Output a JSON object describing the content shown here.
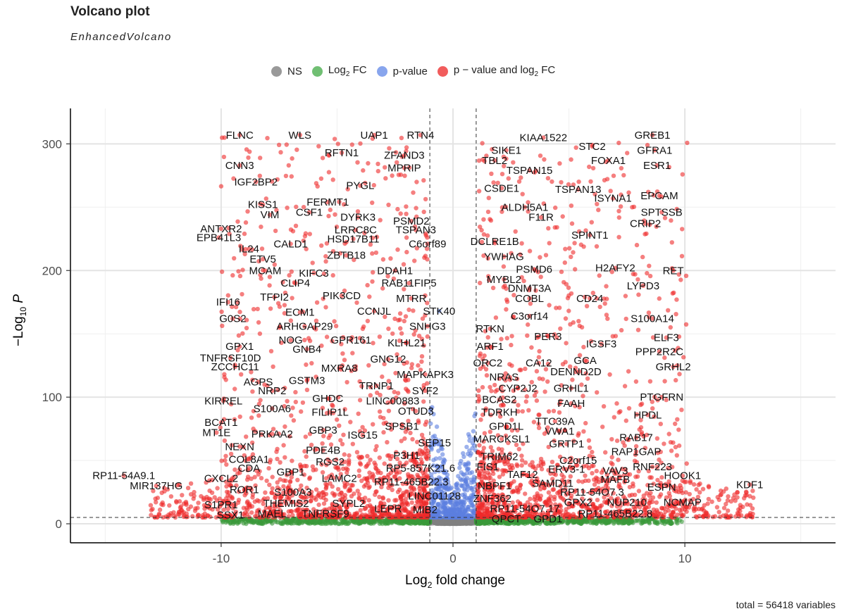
{
  "chart_data": {
    "type": "scatter",
    "title": "Volcano plot",
    "subtitle": "EnhancedVolcano",
    "xlabel_parts": [
      "Log",
      "2",
      " fold change"
    ],
    "ylabel_parts": [
      "−Log",
      "10",
      " P"
    ],
    "xlim": [
      -16.5,
      16.5
    ],
    "ylim": [
      -15,
      328
    ],
    "x_ticks": [
      -10,
      0,
      10
    ],
    "y_ticks": [
      0,
      100,
      200,
      300
    ],
    "grid": true,
    "legend_position": "top",
    "fc_cutoff": 1,
    "p_cutoff_y": 5,
    "caption": "total = 56418 variables",
    "legend": [
      {
        "label": "NS",
        "sub": "",
        "after": "",
        "color": "#808080"
      },
      {
        "label": "Log",
        "sub": "2",
        "after": " FC",
        "color": "#4caf50"
      },
      {
        "label": "p-value",
        "sub": "",
        "after": "",
        "color": "#6a8ee8"
      },
      {
        "label": "p − value and log",
        "sub": "2",
        "after": " FC",
        "color": "#ee3333"
      }
    ],
    "colors": {
      "ns": "#808080",
      "fc": "#3a9a3a",
      "p": "#5b7fe0",
      "both": "#ee2a2a"
    },
    "labels": [
      {
        "text": "FLNC",
        "x": -9.2,
        "y": 307
      },
      {
        "text": "WLS",
        "x": -6.6,
        "y": 307
      },
      {
        "text": "UAP1",
        "x": -3.4,
        "y": 307
      },
      {
        "text": "RTN4",
        "x": -1.4,
        "y": 307
      },
      {
        "text": "KIAA1522",
        "x": 3.9,
        "y": 305
      },
      {
        "text": "GREB1",
        "x": 8.6,
        "y": 307
      },
      {
        "text": "RFTN1",
        "x": -4.8,
        "y": 293
      },
      {
        "text": "ZFAND3",
        "x": -2.1,
        "y": 291
      },
      {
        "text": "SIKE1",
        "x": 2.3,
        "y": 295
      },
      {
        "text": "STC2",
        "x": 6.0,
        "y": 298
      },
      {
        "text": "GFRA1",
        "x": 8.7,
        "y": 295
      },
      {
        "text": "TBL2",
        "x": 1.8,
        "y": 287
      },
      {
        "text": "FOXA1",
        "x": 6.7,
        "y": 287
      },
      {
        "text": "CNN3",
        "x": -9.2,
        "y": 283
      },
      {
        "text": "MPRIP",
        "x": -2.1,
        "y": 281
      },
      {
        "text": "ESR1",
        "x": 8.8,
        "y": 283
      },
      {
        "text": "TSPAN15",
        "x": 3.3,
        "y": 279
      },
      {
        "text": "IGF2BP2",
        "x": -8.5,
        "y": 270
      },
      {
        "text": "PYGL",
        "x": -4.0,
        "y": 267
      },
      {
        "text": "CSDE1",
        "x": 2.1,
        "y": 265
      },
      {
        "text": "TSPAN13",
        "x": 5.4,
        "y": 264
      },
      {
        "text": "EPCAM",
        "x": 8.9,
        "y": 259
      },
      {
        "text": "ISYNA1",
        "x": 6.9,
        "y": 257
      },
      {
        "text": "FERMT1",
        "x": -5.4,
        "y": 254
      },
      {
        "text": "KISS1",
        "x": -8.2,
        "y": 252
      },
      {
        "text": "ALDH5A1",
        "x": 3.1,
        "y": 250
      },
      {
        "text": "CSF1",
        "x": -6.2,
        "y": 246
      },
      {
        "text": "VIM",
        "x": -7.9,
        "y": 244
      },
      {
        "text": "SPTSSB",
        "x": 9.0,
        "y": 246
      },
      {
        "text": "DYRK3",
        "x": -4.1,
        "y": 242
      },
      {
        "text": "F11R",
        "x": 3.8,
        "y": 242
      },
      {
        "text": "PSMD2",
        "x": -1.8,
        "y": 239
      },
      {
        "text": "CRIP2",
        "x": 8.3,
        "y": 237
      },
      {
        "text": "ANTXR2",
        "x": -10.0,
        "y": 233
      },
      {
        "text": "LRRC8C",
        "x": -4.2,
        "y": 232
      },
      {
        "text": "TSPAN3",
        "x": -1.6,
        "y": 232
      },
      {
        "text": "EPB41L3",
        "x": -10.1,
        "y": 226
      },
      {
        "text": "SPINT1",
        "x": 5.9,
        "y": 228
      },
      {
        "text": "HSD17B11",
        "x": -4.3,
        "y": 225
      },
      {
        "text": "DCLRE1B",
        "x": 1.8,
        "y": 223
      },
      {
        "text": "CALD1",
        "x": -7.0,
        "y": 221
      },
      {
        "text": "C6orf89",
        "x": -1.1,
        "y": 221
      },
      {
        "text": "IL24",
        "x": -8.8,
        "y": 217
      },
      {
        "text": "ZBTB18",
        "x": -4.6,
        "y": 212
      },
      {
        "text": "YWHAG",
        "x": 2.2,
        "y": 211
      },
      {
        "text": "ETV5",
        "x": -8.2,
        "y": 209
      },
      {
        "text": "H2AFY2",
        "x": 7.0,
        "y": 202
      },
      {
        "text": "MCAM",
        "x": -8.1,
        "y": 200
      },
      {
        "text": "PSMD6",
        "x": 3.5,
        "y": 201
      },
      {
        "text": "KIFC3",
        "x": -6.0,
        "y": 198
      },
      {
        "text": "DDAH1",
        "x": -2.5,
        "y": 200
      },
      {
        "text": "RET",
        "x": 9.5,
        "y": 200
      },
      {
        "text": "MYBL2",
        "x": 2.2,
        "y": 193
      },
      {
        "text": "CLIP4",
        "x": -6.8,
        "y": 190
      },
      {
        "text": "RAB11FIP5",
        "x": -1.9,
        "y": 190
      },
      {
        "text": "LYPD3",
        "x": 8.2,
        "y": 188
      },
      {
        "text": "DNMT3A",
        "x": 3.3,
        "y": 186
      },
      {
        "text": "TFPI2",
        "x": -7.7,
        "y": 179
      },
      {
        "text": "PIK3CD",
        "x": -4.8,
        "y": 180
      },
      {
        "text": "MTRR",
        "x": -1.8,
        "y": 178
      },
      {
        "text": "COBL",
        "x": 3.3,
        "y": 178
      },
      {
        "text": "CD24",
        "x": 5.9,
        "y": 178
      },
      {
        "text": "IFI16",
        "x": -9.7,
        "y": 175
      },
      {
        "text": "CCNJL",
        "x": -3.4,
        "y": 168
      },
      {
        "text": "STK40",
        "x": -0.6,
        "y": 168
      },
      {
        "text": "ECM1",
        "x": -6.6,
        "y": 167
      },
      {
        "text": "C3orf14",
        "x": 3.3,
        "y": 164
      },
      {
        "text": "G0S2",
        "x": -9.5,
        "y": 162
      },
      {
        "text": "S100A14",
        "x": 8.6,
        "y": 162
      },
      {
        "text": "ARHGAP29",
        "x": -6.4,
        "y": 156
      },
      {
        "text": "SNHG3",
        "x": -1.1,
        "y": 156
      },
      {
        "text": "RTKN",
        "x": 1.6,
        "y": 154
      },
      {
        "text": "PER3",
        "x": 4.1,
        "y": 148
      },
      {
        "text": "ELF3",
        "x": 9.2,
        "y": 147
      },
      {
        "text": "NOG",
        "x": -7.0,
        "y": 145
      },
      {
        "text": "GPR161",
        "x": -4.4,
        "y": 145
      },
      {
        "text": "KLHL21",
        "x": -2.0,
        "y": 143
      },
      {
        "text": "IGSF3",
        "x": 6.4,
        "y": 142
      },
      {
        "text": "GPX1",
        "x": -9.2,
        "y": 140
      },
      {
        "text": "GNB4",
        "x": -6.3,
        "y": 138
      },
      {
        "text": "ARF1",
        "x": 1.6,
        "y": 140
      },
      {
        "text": "PPP2R2C",
        "x": 8.9,
        "y": 136
      },
      {
        "text": "TNFRSF10D",
        "x": -9.6,
        "y": 131
      },
      {
        "text": "GNG12",
        "x": -2.8,
        "y": 130
      },
      {
        "text": "GCA",
        "x": 5.7,
        "y": 129
      },
      {
        "text": "ZCCHC11",
        "x": -9.4,
        "y": 124
      },
      {
        "text": "ORC2",
        "x": 1.5,
        "y": 127
      },
      {
        "text": "CA12",
        "x": 3.7,
        "y": 127
      },
      {
        "text": "GRHL2",
        "x": 9.5,
        "y": 124
      },
      {
        "text": "MXRA8",
        "x": -4.9,
        "y": 123
      },
      {
        "text": "DENND2D",
        "x": 5.3,
        "y": 120
      },
      {
        "text": "MAPKAPK3",
        "x": -1.2,
        "y": 118
      },
      {
        "text": "NRAS",
        "x": 2.2,
        "y": 116
      },
      {
        "text": "AGPS",
        "x": -8.4,
        "y": 112
      },
      {
        "text": "GSTM3",
        "x": -6.3,
        "y": 113
      },
      {
        "text": "TRNP1",
        "x": -3.3,
        "y": 109
      },
      {
        "text": "GRHL1",
        "x": 5.1,
        "y": 107
      },
      {
        "text": "CYP2J2",
        "x": 2.8,
        "y": 107
      },
      {
        "text": "NRP2",
        "x": -7.8,
        "y": 105
      },
      {
        "text": "SYF2",
        "x": -1.2,
        "y": 105
      },
      {
        "text": "PTGFRN",
        "x": 9.0,
        "y": 100
      },
      {
        "text": "KIRREL",
        "x": -9.9,
        "y": 97
      },
      {
        "text": "GHDC",
        "x": -5.4,
        "y": 99
      },
      {
        "text": "LINC00883",
        "x": -2.6,
        "y": 97
      },
      {
        "text": "BCAS2",
        "x": 2.0,
        "y": 98
      },
      {
        "text": "FAAH",
        "x": 5.1,
        "y": 95
      },
      {
        "text": "S100A6",
        "x": -7.8,
        "y": 91
      },
      {
        "text": "FILIP1L",
        "x": -5.3,
        "y": 88
      },
      {
        "text": "OTUD3",
        "x": -1.6,
        "y": 89
      },
      {
        "text": "TDRKH",
        "x": 2.0,
        "y": 88
      },
      {
        "text": "HPDL",
        "x": 8.4,
        "y": 86
      },
      {
        "text": "BCAT1",
        "x": -10.0,
        "y": 80
      },
      {
        "text": "TTC39A",
        "x": 4.4,
        "y": 81
      },
      {
        "text": "SPSB1",
        "x": -2.2,
        "y": 77
      },
      {
        "text": "GPD1L",
        "x": 2.3,
        "y": 77
      },
      {
        "text": "MT1E",
        "x": -10.2,
        "y": 72
      },
      {
        "text": "PRKAA2",
        "x": -7.8,
        "y": 71
      },
      {
        "text": "GBP3",
        "x": -5.6,
        "y": 74
      },
      {
        "text": "VWA1",
        "x": 4.6,
        "y": 73
      },
      {
        "text": "ISG15",
        "x": -3.9,
        "y": 70
      },
      {
        "text": "RAB17",
        "x": 7.9,
        "y": 68
      },
      {
        "text": "MARCKSL1",
        "x": 2.1,
        "y": 67
      },
      {
        "text": "SEP15",
        "x": -0.8,
        "y": 64
      },
      {
        "text": "NEXN",
        "x": -9.2,
        "y": 61
      },
      {
        "text": "GRTP1",
        "x": 4.9,
        "y": 63
      },
      {
        "text": "PDE4B",
        "x": -5.6,
        "y": 58
      },
      {
        "text": "RAP1GAP",
        "x": 7.9,
        "y": 57
      },
      {
        "text": "P3H1",
        "x": -2.0,
        "y": 54
      },
      {
        "text": "TRIM62",
        "x": 2.0,
        "y": 53
      },
      {
        "text": "COL8A1",
        "x": -8.8,
        "y": 51
      },
      {
        "text": "RGS2",
        "x": -5.3,
        "y": 49
      },
      {
        "text": "C2orf15",
        "x": 5.4,
        "y": 50
      },
      {
        "text": "RNF223",
        "x": 8.6,
        "y": 45
      },
      {
        "text": "CDA",
        "x": -8.8,
        "y": 44
      },
      {
        "text": "GBP1",
        "x": -7.0,
        "y": 41
      },
      {
        "text": "RP5-857K21.6",
        "x": -1.4,
        "y": 44
      },
      {
        "text": "FIS1",
        "x": 1.5,
        "y": 45
      },
      {
        "text": "ERV3-1",
        "x": 4.9,
        "y": 43
      },
      {
        "text": "VAV3",
        "x": 7.0,
        "y": 42
      },
      {
        "text": "TAF12",
        "x": 3.0,
        "y": 39
      },
      {
        "text": "RP11-54A9.1",
        "x": -14.2,
        "y": 38
      },
      {
        "text": "HOOK1",
        "x": 9.9,
        "y": 38
      },
      {
        "text": "CXCL2",
        "x": -10.0,
        "y": 36
      },
      {
        "text": "LAMC2",
        "x": -4.9,
        "y": 36
      },
      {
        "text": "MAFB",
        "x": 7.0,
        "y": 35
      },
      {
        "text": "KDF1",
        "x": 12.8,
        "y": 31
      },
      {
        "text": "MIR137HG",
        "x": -12.8,
        "y": 30
      },
      {
        "text": "RP11-465B22.3",
        "x": -1.8,
        "y": 33
      },
      {
        "text": "NBPF1",
        "x": 1.8,
        "y": 30
      },
      {
        "text": "SAMD11",
        "x": 4.3,
        "y": 32
      },
      {
        "text": "ESPN",
        "x": 9.0,
        "y": 29
      },
      {
        "text": "ROR1",
        "x": -9.0,
        "y": 27
      },
      {
        "text": "S100A3",
        "x": -6.9,
        "y": 25
      },
      {
        "text": "RP11-54O7.3",
        "x": 6.0,
        "y": 25
      },
      {
        "text": "LINC01128",
        "x": -0.8,
        "y": 22
      },
      {
        "text": "ZNF362",
        "x": 1.7,
        "y": 20
      },
      {
        "text": "SYPL2",
        "x": -4.5,
        "y": 16
      },
      {
        "text": "NUP210",
        "x": 7.5,
        "y": 17
      },
      {
        "text": "NCMAP",
        "x": 9.9,
        "y": 17
      },
      {
        "text": "S1PR1",
        "x": -10.0,
        "y": 15
      },
      {
        "text": "THEMIS2",
        "x": -7.2,
        "y": 16
      },
      {
        "text": "GPX2",
        "x": 5.4,
        "y": 17
      },
      {
        "text": "RP11-54O7.17",
        "x": 3.1,
        "y": 12
      },
      {
        "text": "LEPR",
        "x": -2.8,
        "y": 12
      },
      {
        "text": "MIB2",
        "x": -1.2,
        "y": 11
      },
      {
        "text": "MAEL",
        "x": -7.8,
        "y": 8
      },
      {
        "text": "TNFRSF9",
        "x": -5.5,
        "y": 8
      },
      {
        "text": "SSX1",
        "x": -9.6,
        "y": 7
      },
      {
        "text": "RP11-465B22.8",
        "x": 7.0,
        "y": 8
      },
      {
        "text": "QPCT",
        "x": 2.3,
        "y": 4
      },
      {
        "text": "GPD1",
        "x": 4.1,
        "y": 4
      }
    ]
  }
}
